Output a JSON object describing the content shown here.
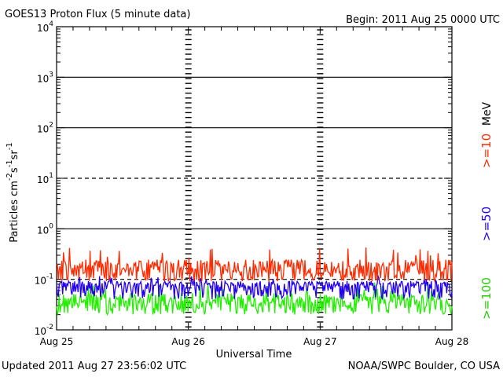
{
  "chart_data": {
    "type": "line",
    "title": "GOES13 Proton Flux (5 minute data)",
    "begin_label": "Begin: 2011 Aug 25 0000 UTC",
    "xlabel": "Universal Time",
    "ylabel": "Particles cm⁻²s⁻¹sr⁻¹",
    "ylabel_parts": {
      "base": "Particles cm",
      "e1": "-2",
      "mid1": "s",
      "e2": "-1",
      "mid2": "sr",
      "e3": "-1"
    },
    "yscale": "log",
    "ylim_exponents": [
      -2,
      4
    ],
    "y_tick_exponents": [
      -2,
      -1,
      0,
      1,
      2,
      3,
      4
    ],
    "y_tick_base": "10",
    "x_tick_labels": [
      "Aug 25",
      "Aug 26",
      "Aug 27",
      "Aug 28"
    ],
    "xlim_days": [
      0,
      3
    ],
    "grid": {
      "solid_decades": [
        0,
        2,
        3
      ],
      "dashed_decades": [
        -1,
        1
      ]
    },
    "legend_placement": "right, vertical",
    "legend_unit": "MeV",
    "series": [
      {
        "name": ">=10",
        "color": "#ff2a00",
        "typical_value": 0.15,
        "max_value": 0.45,
        "min_value": 0.09
      },
      {
        "name": ">=50",
        "color": "#2200ee",
        "typical_value": 0.075,
        "max_value": 0.12,
        "min_value": 0.04
      },
      {
        "name": ">=100",
        "color": "#22ee00",
        "typical_value": 0.035,
        "max_value": 0.09,
        "min_value": 0.02
      }
    ]
  },
  "footer": {
    "updated": "Updated 2011 Aug 27 23:56:02 UTC",
    "source": "NOAA/SWPC Boulder, CO USA"
  }
}
